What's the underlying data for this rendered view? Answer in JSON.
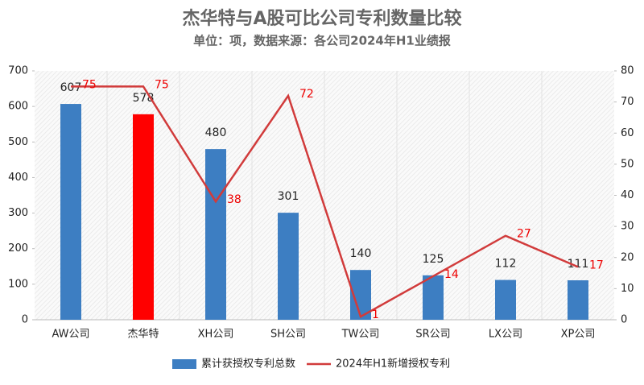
{
  "chart_data": {
    "type": "bar",
    "title": "杰华特与A股可比公司专利数量比较",
    "subtitle": "单位：项，数据来源：各公司2024年H1业绩报",
    "categories": [
      "AW公司",
      "杰华特",
      "XH公司",
      "SH公司",
      "TW公司",
      "SR公司",
      "LX公司",
      "XP公司"
    ],
    "series": [
      {
        "name": "累计获授权专利总数",
        "type": "bar",
        "color": "#3d7ec2",
        "bar_colors": [
          "#3d7ec2",
          "#ff0000",
          "#3d7ec2",
          "#3d7ec2",
          "#3d7ec2",
          "#3d7ec2",
          "#3d7ec2",
          "#3d7ec2"
        ],
        "label_color": "#222222",
        "values": [
          607,
          578,
          480,
          301,
          140,
          125,
          112,
          111
        ]
      },
      {
        "name": "2024年H1新增授权专利",
        "type": "line",
        "axis": "y2",
        "color": "#d13b3b",
        "label_color": "#ee0000",
        "values": [
          75,
          75,
          38,
          72,
          1,
          14,
          27,
          17
        ]
      }
    ],
    "ylim": [
      0,
      700
    ],
    "yticks": [
      0,
      100,
      200,
      300,
      400,
      500,
      600,
      700
    ],
    "y2lim": [
      0,
      80
    ],
    "y2ticks": [
      0,
      10,
      20,
      30,
      40,
      50,
      60,
      70,
      80
    ],
    "legend": "bottom"
  }
}
